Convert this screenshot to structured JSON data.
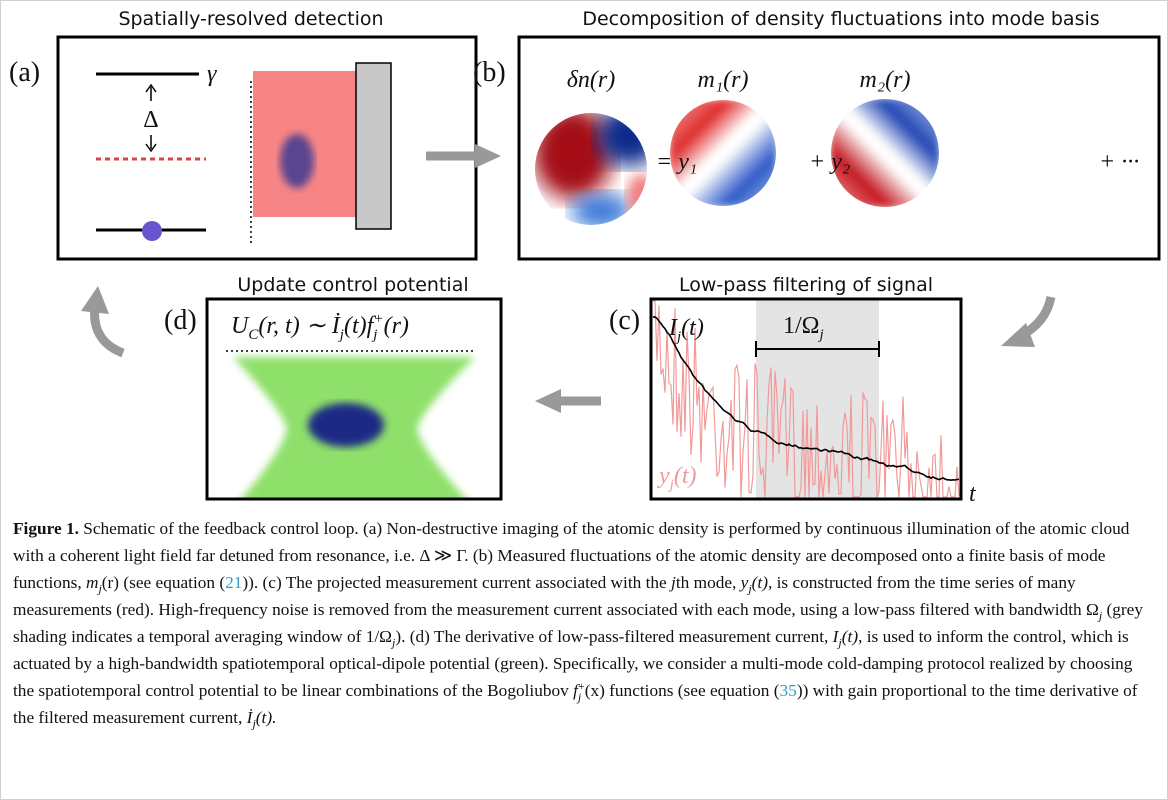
{
  "panel_a": {
    "label": "(a)",
    "title": "Spatially-resolved detection",
    "gamma": "γ",
    "delta": "Δ"
  },
  "panel_b": {
    "label": "(b)",
    "title": "Decomposition of density fluctuations into mode basis",
    "terms": [
      "δn(r)",
      "m₁(r)",
      "m₂(r)"
    ],
    "operators": [
      "= y₁",
      "+ y₂",
      "+ ···"
    ]
  },
  "panel_c": {
    "label": "(c)",
    "title": "Low-pass filtering of signal",
    "signal": [
      "I",
      "j",
      "(t)"
    ],
    "raw": [
      "y",
      "j",
      "(t)"
    ],
    "window": [
      "1/Ω",
      "j"
    ],
    "axis": "t"
  },
  "panel_d": {
    "label": "(d)",
    "title": "Update control potential",
    "formula": [
      "U",
      "C",
      "(r, t) ∼ İ",
      "j",
      "(t)f",
      "j",
      "+",
      "(r)"
    ]
  },
  "caption": [
    "Figure 1.",
    " Schematic of the feedback control loop. (a) Non-destructive imaging of the atomic density is performed by continuous illumination of the atomic cloud with a coherent light field far detuned from resonance, i.e. Δ ≫ Γ. (b) Measured fluctuations of the atomic density are decomposed onto a finite basis of mode functions, ",
    "m",
    "j",
    "(r)",
    " (see equation (",
    "21",
    ")). (c) The projected measurement current associated with the ",
    "j",
    "th mode, ",
    "y",
    "j",
    "(t)",
    ", is constructed from the time series of many measurements (red). High-frequency noise is removed from the measurement current associated with each mode, using a low-pass filtered with bandwidth ",
    "Ω",
    "j",
    " (grey shading indicates a temporal averaging window of 1/Ω",
    "j",
    "). (d) The derivative of low-pass-filtered measurement current, ",
    "I",
    "j",
    "(t)",
    ", is used to inform the control, which is actuated by a high-bandwidth spatiotemporal optical-dipole potential (green). Specifically, we consider a multi-mode cold-damping protocol realized by choosing the spatiotemporal control potential to be linear combinations of the Bogoliubov ",
    "f",
    "j",
    "+",
    "(x)",
    " functions (see equation (",
    "35",
    ")) with gain proportional to the time derivative of the filtered measurement current, ",
    "İ",
    "j",
    "(t)."
  ]
}
